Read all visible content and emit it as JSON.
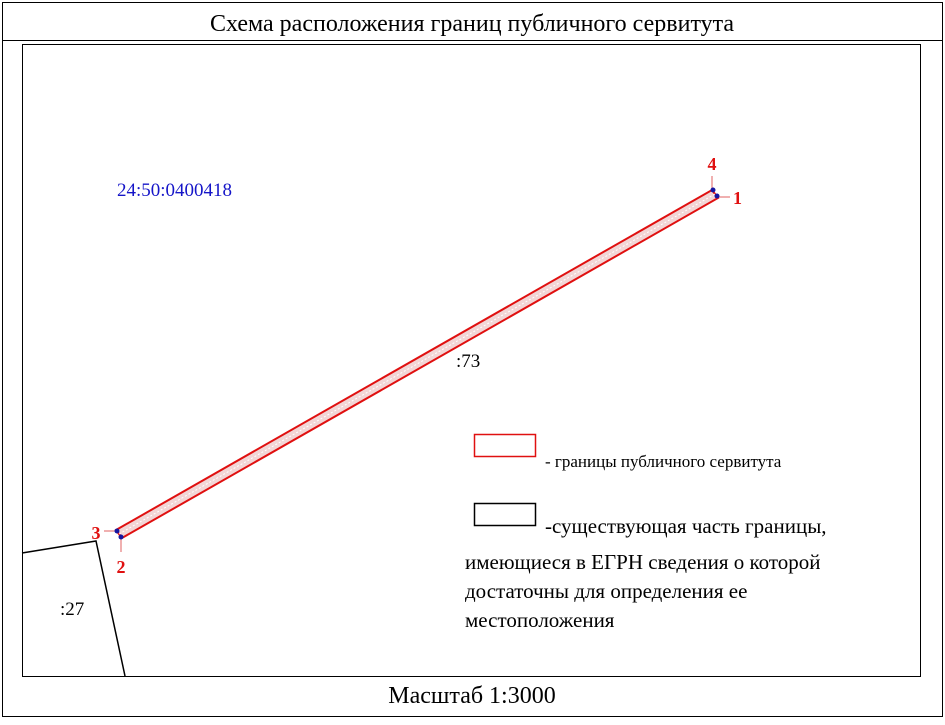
{
  "header": {
    "title": "Схема расположения границ публичного сервитута"
  },
  "map": {
    "quarter": "24:50:0400418",
    "parcels": [
      ":73",
      ":27"
    ],
    "points": [
      "1",
      "2",
      "3",
      "4"
    ]
  },
  "legend": {
    "items": [
      {
        "lines": [
          "- границы публичного сервитута"
        ]
      },
      {
        "lines": [
          "-существующая часть границы,",
          "имеющиеся в ЕГРН сведения о которой",
          "достаточны для определения ее",
          "местоположения"
        ]
      }
    ]
  },
  "footer": {
    "scale": "Масштаб 1:3000"
  }
}
